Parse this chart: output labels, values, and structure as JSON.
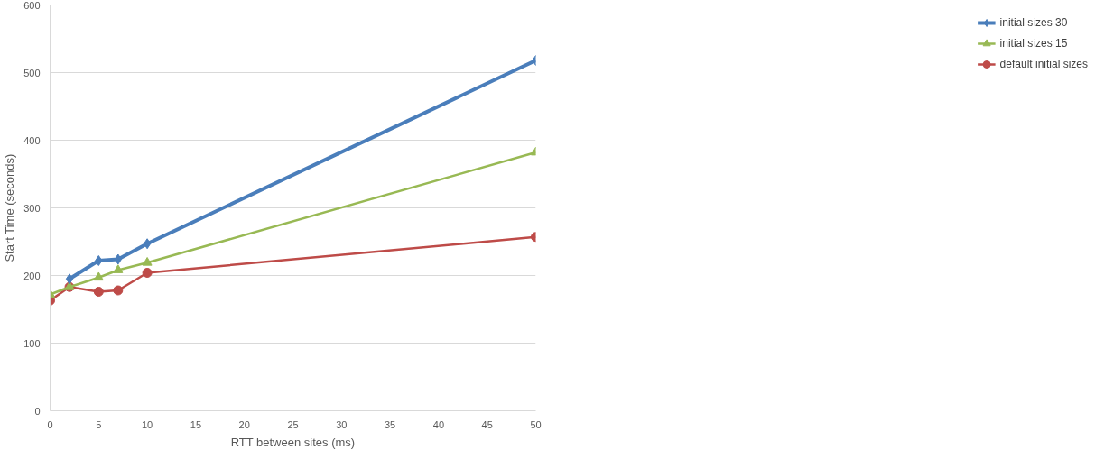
{
  "chart_data": {
    "type": "line",
    "xlabel": "RTT between sites (ms)",
    "ylabel": "Start Time (seconds)",
    "xlim": [
      0,
      50
    ],
    "xticks": [
      0,
      5,
      10,
      15,
      20,
      25,
      30,
      35,
      40,
      45,
      50
    ],
    "ylim": [
      0,
      600
    ],
    "yticks": [
      0,
      100,
      200,
      300,
      400,
      500,
      600
    ],
    "grid": "y",
    "legend": "right",
    "series": [
      {
        "name": "initial sizes 30",
        "color": "#4a7ebb",
        "marker": "diamond",
        "x": [
          2,
          5,
          7,
          10,
          50
        ],
        "values": [
          195,
          222,
          224,
          247,
          518
        ]
      },
      {
        "name": "initial sizes 15",
        "color": "#98b954",
        "marker": "triangle",
        "x": [
          0,
          2,
          5,
          7,
          10,
          50
        ],
        "values": [
          172,
          183,
          197,
          208,
          219,
          382
        ]
      },
      {
        "name": "default initial sizes",
        "color": "#be4b48",
        "marker": "circle",
        "x": [
          0,
          2,
          5,
          7,
          10,
          50
        ],
        "values": [
          163,
          183,
          176,
          178,
          204,
          257
        ]
      }
    ]
  }
}
